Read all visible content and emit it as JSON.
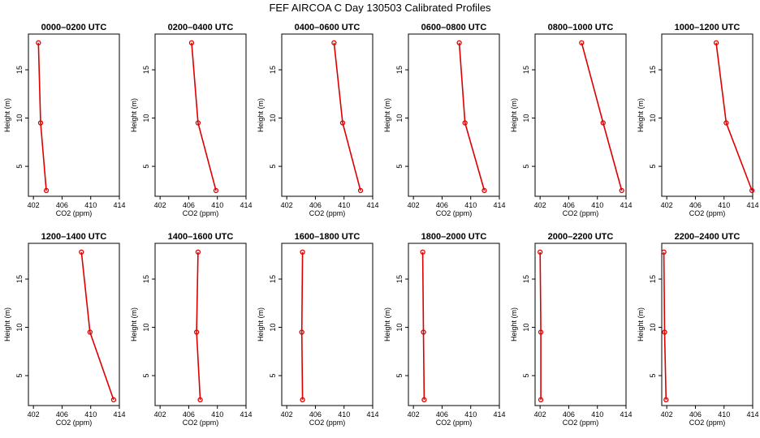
{
  "figure": {
    "title": "FEF AIRCOA C  Day 130503  Calibrated Profiles",
    "line_color": "#dd0000",
    "axis_color": "#000000"
  },
  "chart_data": [
    {
      "type": "line",
      "title": "0000–0200 UTC",
      "xlabel": "CO2 (ppm)",
      "ylabel": "Height (m)",
      "xlim": [
        401.3,
        414
      ],
      "ylim": [
        1.9,
        18.7
      ],
      "xticks": [
        402,
        406,
        410,
        414
      ],
      "yticks": [
        5,
        10,
        15
      ],
      "series": [
        {
          "x": [
            402.7,
            403.0,
            403.8
          ],
          "y": [
            17.8,
            9.5,
            2.5
          ]
        }
      ]
    },
    {
      "type": "line",
      "title": "0200–0400 UTC",
      "xlabel": "CO2 (ppm)",
      "ylabel": "Height (m)",
      "xlim": [
        401.3,
        414
      ],
      "ylim": [
        1.9,
        18.7
      ],
      "xticks": [
        402,
        406,
        410,
        414
      ],
      "yticks": [
        5,
        10,
        15
      ],
      "series": [
        {
          "x": [
            406.4,
            407.3,
            409.8
          ],
          "y": [
            17.8,
            9.5,
            2.5
          ]
        }
      ]
    },
    {
      "type": "line",
      "title": "0400–0600 UTC",
      "xlabel": "CO2 (ppm)",
      "ylabel": "Height (m)",
      "xlim": [
        401.3,
        414
      ],
      "ylim": [
        1.9,
        18.7
      ],
      "xticks": [
        402,
        406,
        410,
        414
      ],
      "yticks": [
        5,
        10,
        15
      ],
      "series": [
        {
          "x": [
            408.6,
            409.8,
            412.3
          ],
          "y": [
            17.8,
            9.5,
            2.5
          ]
        }
      ]
    },
    {
      "type": "line",
      "title": "0600–0800 UTC",
      "xlabel": "CO2 (ppm)",
      "ylabel": "Height (m)",
      "xlim": [
        401.3,
        414
      ],
      "ylim": [
        1.9,
        18.7
      ],
      "xticks": [
        402,
        406,
        410,
        414
      ],
      "yticks": [
        5,
        10,
        15
      ],
      "series": [
        {
          "x": [
            408.4,
            409.2,
            411.9
          ],
          "y": [
            17.8,
            9.5,
            2.5
          ]
        }
      ]
    },
    {
      "type": "line",
      "title": "0800–1000 UTC",
      "xlabel": "CO2 (ppm)",
      "ylabel": "Height (m)",
      "xlim": [
        401.3,
        414
      ],
      "ylim": [
        1.9,
        18.7
      ],
      "xticks": [
        402,
        406,
        410,
        414
      ],
      "yticks": [
        5,
        10,
        15
      ],
      "series": [
        {
          "x": [
            407.8,
            410.8,
            413.4
          ],
          "y": [
            17.8,
            9.5,
            2.5
          ]
        }
      ]
    },
    {
      "type": "line",
      "title": "1000–1200 UTC",
      "xlabel": "CO2 (ppm)",
      "ylabel": "Height (m)",
      "xlim": [
        401.3,
        414
      ],
      "ylim": [
        1.9,
        18.7
      ],
      "xticks": [
        402,
        406,
        410,
        414
      ],
      "yticks": [
        5,
        10,
        15
      ],
      "series": [
        {
          "x": [
            408.9,
            410.3,
            413.9
          ],
          "y": [
            17.8,
            9.5,
            2.5
          ]
        }
      ]
    },
    {
      "type": "line",
      "title": "1200–1400 UTC",
      "xlabel": "CO2 (ppm)",
      "ylabel": "Height (m)",
      "xlim": [
        401.3,
        414
      ],
      "ylim": [
        1.9,
        18.7
      ],
      "xticks": [
        402,
        406,
        410,
        414
      ],
      "yticks": [
        5,
        10,
        15
      ],
      "series": [
        {
          "x": [
            408.7,
            409.9,
            413.2
          ],
          "y": [
            17.8,
            9.5,
            2.5
          ]
        }
      ]
    },
    {
      "type": "line",
      "title": "1400–1600 UTC",
      "xlabel": "CO2 (ppm)",
      "ylabel": "Height (m)",
      "xlim": [
        401.3,
        414
      ],
      "ylim": [
        1.9,
        18.7
      ],
      "xticks": [
        402,
        406,
        410,
        414
      ],
      "yticks": [
        5,
        10,
        15
      ],
      "series": [
        {
          "x": [
            407.3,
            407.1,
            407.6
          ],
          "y": [
            17.8,
            9.5,
            2.5
          ]
        }
      ]
    },
    {
      "type": "line",
      "title": "1600–1800 UTC",
      "xlabel": "CO2 (ppm)",
      "ylabel": "Height (m)",
      "xlim": [
        401.3,
        414
      ],
      "ylim": [
        1.9,
        18.7
      ],
      "xticks": [
        402,
        406,
        410,
        414
      ],
      "yticks": [
        5,
        10,
        15
      ],
      "series": [
        {
          "x": [
            404.2,
            404.1,
            404.2
          ],
          "y": [
            17.8,
            9.5,
            2.5
          ]
        }
      ]
    },
    {
      "type": "line",
      "title": "1800–2000 UTC",
      "xlabel": "CO2 (ppm)",
      "ylabel": "Height (m)",
      "xlim": [
        401.3,
        414
      ],
      "ylim": [
        1.9,
        18.7
      ],
      "xticks": [
        402,
        406,
        410,
        414
      ],
      "yticks": [
        5,
        10,
        15
      ],
      "series": [
        {
          "x": [
            403.3,
            403.4,
            403.5
          ],
          "y": [
            17.8,
            9.5,
            2.5
          ]
        }
      ]
    },
    {
      "type": "line",
      "title": "2000–2200 UTC",
      "xlabel": "CO2 (ppm)",
      "ylabel": "Height (m)",
      "xlim": [
        401.3,
        414
      ],
      "ylim": [
        1.9,
        18.7
      ],
      "xticks": [
        402,
        406,
        410,
        414
      ],
      "yticks": [
        5,
        10,
        15
      ],
      "series": [
        {
          "x": [
            402.0,
            402.1,
            402.1
          ],
          "y": [
            17.8,
            9.5,
            2.5
          ]
        }
      ]
    },
    {
      "type": "line",
      "title": "2200–2400 UTC",
      "xlabel": "CO2 (ppm)",
      "ylabel": "Height (m)",
      "xlim": [
        401.3,
        414
      ],
      "ylim": [
        1.9,
        18.7
      ],
      "xticks": [
        402,
        406,
        410,
        414
      ],
      "yticks": [
        5,
        10,
        15
      ],
      "series": [
        {
          "x": [
            401.6,
            401.7,
            401.9
          ],
          "y": [
            17.8,
            9.5,
            2.5
          ]
        }
      ]
    }
  ]
}
